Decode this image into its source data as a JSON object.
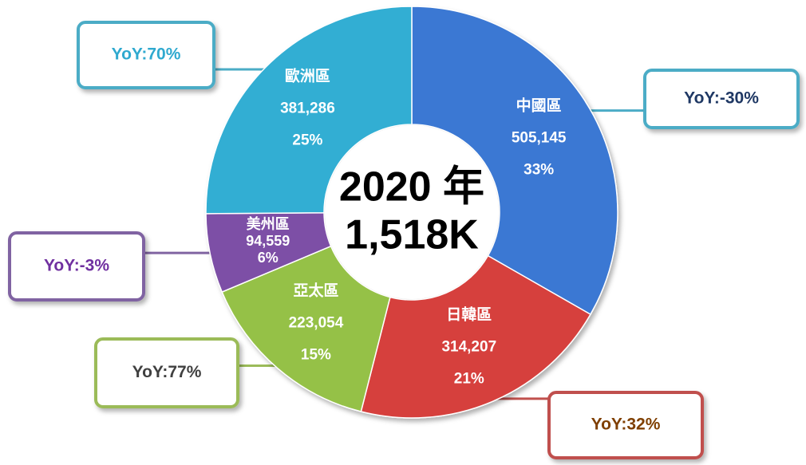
{
  "chart_data": {
    "type": "donut",
    "categories": [
      "中國區",
      "日韓區",
      "亞太區",
      "美州區",
      "歐洲區"
    ],
    "values": [
      505145,
      314207,
      223054,
      94559,
      381286
    ],
    "value_labels": [
      "505,145",
      "314,207",
      "223,054",
      "94,559",
      "381,286"
    ],
    "percent_labels": [
      "33%",
      "21%",
      "15%",
      "6%",
      "25%"
    ],
    "colors": [
      "#3b78d3",
      "#d6403e",
      "#95c146",
      "#7d4fa6",
      "#30aed3"
    ],
    "yoy_labels": [
      "YoY:-30%",
      "YoY:32%",
      "YoY:77%",
      "YoY:-3%",
      "YoY:70%"
    ],
    "center_text": [
      "2020 年",
      "1,518K"
    ]
  }
}
